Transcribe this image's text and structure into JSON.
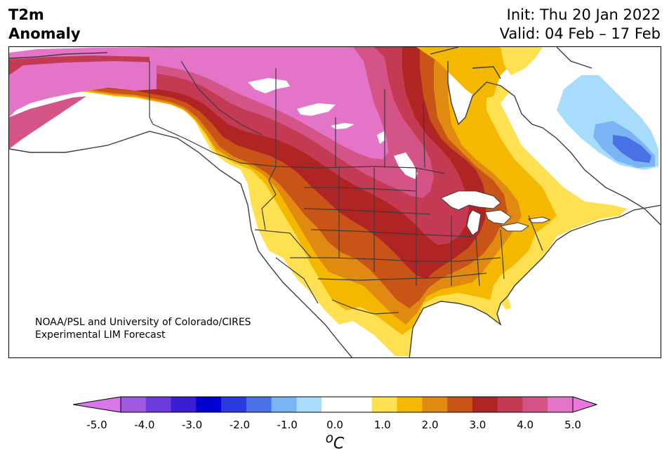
{
  "header": {
    "title_line1": "T2m",
    "title_line2": "Anomaly",
    "init": "Init: Thu 20 Jan 2022",
    "valid": "Valid: 04 Feb – 17 Feb"
  },
  "credit": {
    "line1": "NOAA/PSL and University of Colorado/CIRES",
    "line2": "Experimental LIM Forecast"
  },
  "colorbar": {
    "tick_labels": [
      "-5.0",
      "-4.0",
      "-3.0",
      "-2.0",
      "-1.0",
      "0.0",
      "1.0",
      "2.0",
      "3.0",
      "4.0",
      "5.0"
    ],
    "unit": "°C",
    "colors": [
      "#a05ae0",
      "#6a3adc",
      "#3c1ed2",
      "#0000d0",
      "#2a3ade",
      "#4a72e6",
      "#7ab4f4",
      "#a8dcfc",
      "#ffffff",
      "#ffffff",
      "#ffe050",
      "#f4b800",
      "#e08a12",
      "#c85418",
      "#b02424",
      "#c43a52",
      "#d45488",
      "#e474c8"
    ],
    "under_color": "#d878ec",
    "over_color": "#e878e0"
  },
  "map_colors": {
    "water": "#ffffff",
    "neutral": "#ffffff",
    "ice_outline": "#ffffff",
    "border": "#3c3c3c"
  }
}
